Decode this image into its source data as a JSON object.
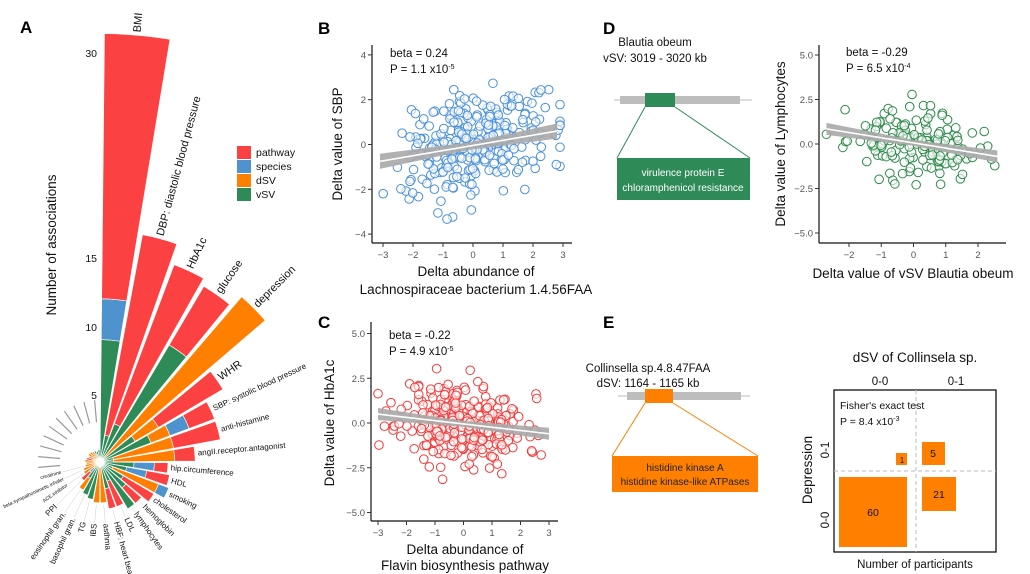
{
  "colors": {
    "pathway": "#FB4141",
    "species": "#4F93CE",
    "dSV": "#FF8000",
    "vSV": "#2E8A57",
    "scatter_blue": "#4A90D9",
    "scatter_red": "#F23B3B",
    "scatter_green": "#2E8A4A",
    "gray_band": "#A8A8A8"
  },
  "panels": {
    "A": "A",
    "B": "B",
    "C": "C",
    "D": "D",
    "E": "E"
  },
  "chart_data": [
    {
      "id": "A",
      "type": "bar",
      "subtype": "circular-stacked",
      "ylabel": "Number of associations",
      "yticks": [
        "5",
        "10",
        "15",
        "30"
      ],
      "legend": [
        "pathway",
        "species",
        "dSV",
        "vSV"
      ],
      "legend_position": "right",
      "categories": [
        {
          "label": "BMI",
          "vSV": 9,
          "species": 3,
          "pathway": 19.5
        },
        {
          "label": "DBP: diastolic blood pressure",
          "vSV": 2,
          "pathway": 15
        },
        {
          "label": "HbA1c",
          "vSV": 3,
          "pathway": 12.5
        },
        {
          "label": "glucose",
          "vSV": 10,
          "pathway": 5
        },
        {
          "label": "depression",
          "dSV": 16
        },
        {
          "label": "WHR",
          "vSV": 3,
          "dSV": 2,
          "pathway": 5.5
        },
        {
          "label": "SBP: systolic blood pressure",
          "vSV": 4,
          "dSV": 1.5,
          "species": 1.5,
          "pathway": 2
        },
        {
          "label": "anti-histamine",
          "vSV": 1,
          "pathway": 3.5,
          "dSV": 4.5
        },
        {
          "label": "angII.receptor.antagonist",
          "vSV": 1,
          "dSV": 4.5,
          "pathway": 1.5
        },
        {
          "label": "hip.circumference",
          "vSV": 2.5,
          "species": 1.5,
          "pathway": 1
        },
        {
          "label": "HDL",
          "vSV": 2,
          "species": 1.5,
          "pathway": 1.7
        },
        {
          "label": "smoking",
          "vSV": 1,
          "species": 0.8,
          "dSV": 3.6
        },
        {
          "label": "cholesterol",
          "vSV": 2,
          "pathway": 2.6
        },
        {
          "label": "hemoglobin",
          "vSV": 2.5,
          "pathway": 1.5
        },
        {
          "label": "lymphocytes",
          "vSV": 4
        },
        {
          "label": "LDL",
          "vSV": 1.5,
          "pathway": 2
        },
        {
          "label": "HBF: heart beat fre.",
          "vSV": 2,
          "pathway": 1.5
        },
        {
          "label": "asthma",
          "dSV": 3
        },
        {
          "label": "IBS",
          "dSV": 3
        },
        {
          "label": "TG",
          "vSV": 2.8
        },
        {
          "label": "basophil gran.",
          "vSV": 2.6
        },
        {
          "label": "eosinophil gran.",
          "vSV": 1.4,
          "dSV": 1
        },
        {
          "label": "PPI",
          "pathway": 0.8,
          "species": 0.4,
          "dSV": 0.6
        },
        {
          "label": "ACE.inhibitor",
          "dSV": 1.4
        },
        {
          "label": "beta.sympathomimetic.inhaler",
          "dSV": 1.3
        },
        {
          "label": "creatinine",
          "dSV": 1.1
        },
        {
          "label": "",
          "dSV": 1.0
        },
        {
          "label": "",
          "dSV": 0.9,
          "vSV": 0.2
        },
        {
          "label": "",
          "pathway": 0.5,
          "dSV": 0.5
        },
        {
          "label": "",
          "dSV": 0.9
        },
        {
          "label": "",
          "dSV": 1.0
        },
        {
          "label": "",
          "vSV": 0.6,
          "dSV": 0.4
        },
        {
          "label": "",
          "dSV": 0.9
        },
        {
          "label": "",
          "species": 0.3,
          "dSV": 0.6
        },
        {
          "label": "",
          "vSV": 0.8
        },
        {
          "label": "",
          "vSV": 0.9
        }
      ]
    },
    {
      "id": "B",
      "type": "scatter",
      "xlabel": [
        "Delta abundance of",
        "Lachnospiraceae bacterium 1.4.56FAA"
      ],
      "ylabel": "Delta value of SBP",
      "xticks": [
        "−3",
        "−2",
        "−1",
        "0",
        "1",
        "2",
        "3"
      ],
      "xtick_values": [
        -3,
        -2,
        -1,
        0,
        1,
        2,
        3
      ],
      "yticks": [
        "−4",
        "−2",
        "0",
        "2",
        "4"
      ],
      "ytick_values": [
        -4,
        -2,
        0,
        2,
        4
      ],
      "xlim": [
        -3.2,
        3.2
      ],
      "ylim": [
        -4.4,
        4.4
      ],
      "beta_label": "beta = 0.24",
      "p_label": "P = 1.1 x10",
      "p_exp": "-5",
      "slope": 0.24,
      "fit_line": [
        [
          -3.1,
          -0.75
        ],
        [
          2.8,
          0.6
        ]
      ],
      "point_spread": {
        "x_sd": 1.2,
        "y_sd": 1.1,
        "x_range": [
          -3.1,
          2.9
        ]
      }
    },
    {
      "id": "C",
      "type": "scatter",
      "xlabel": [
        "Delta abundance of",
        "Flavin biosynthesis pathway"
      ],
      "ylabel": "Delta value of HbA1c",
      "xticks": [
        "−3",
        "−2",
        "−1",
        "0",
        "1",
        "2",
        "3"
      ],
      "xtick_values": [
        -3,
        -2,
        -1,
        0,
        1,
        2,
        3
      ],
      "yticks": [
        "−5.0",
        "−2.5",
        "0.0",
        "2.5",
        "5.0"
      ],
      "ytick_values": [
        -5,
        -2.5,
        0,
        2.5,
        5
      ],
      "xlim": [
        -3.2,
        3.3
      ],
      "ylim": [
        -5.5,
        5.5
      ],
      "beta_label": "beta = -0.22",
      "p_label": "P = 4.9 x10",
      "p_exp": "-5",
      "slope": -0.22,
      "fit_line": [
        [
          -3,
          0.5
        ],
        [
          3,
          -0.6
        ]
      ],
      "point_spread": {
        "x_sd": 1.1,
        "y_sd": 1.1,
        "x_range": [
          -3,
          3
        ]
      }
    },
    {
      "id": "D",
      "type": "scatter",
      "xlabel": [
        "Delta value of vSV Blautia obeum"
      ],
      "ylabel": "Delta value of Lymphocytes",
      "xticks": [
        "−2",
        "−1",
        "0",
        "1",
        "2"
      ],
      "xtick_values": [
        -2,
        -1,
        0,
        1,
        2
      ],
      "yticks": [
        "−5.0",
        "−2.5",
        "0.0",
        "2.5",
        "5.0"
      ],
      "ytick_values": [
        -5,
        -2.5,
        0,
        2.5,
        5
      ],
      "xlim": [
        -2.9,
        2.8
      ],
      "ylim": [
        -5.5,
        5.5
      ],
      "beta_label": "beta = -0.29",
      "p_label": "P = 6.5 x10",
      "p_exp": "-4",
      "slope": -0.29,
      "fit_line": [
        [
          -2.7,
          0.85
        ],
        [
          2.6,
          -0.7
        ]
      ],
      "point_spread": {
        "x_sd": 1.0,
        "y_sd": 0.9,
        "x_range": [
          -2.7,
          2.6
        ]
      }
    },
    {
      "id": "E",
      "type": "table",
      "subtype": "mosaic",
      "title": "dSV of Collinsela sp.",
      "col_labels": [
        "0-0",
        "0-1"
      ],
      "row_title": "Depression",
      "row_labels": [
        "0-1",
        "0-0"
      ],
      "xlabel": "Number of participants",
      "test_label": "Fisher's exact test",
      "p_label": "P = 8.4 x10",
      "p_exp": "-3",
      "cells": {
        "dep_0-0_dsv_0-0": 60,
        "dep_0-0_dsv_0-1": 21,
        "dep_0-1_dsv_0-0": 1,
        "dep_0-1_dsv_0-1": 5
      }
    }
  ],
  "diagram_D": {
    "species": "Blautia obeum",
    "region": "vSV: 3019 - 3020 kb",
    "genes": [
      "virulence protein E",
      "chloramphenicol resistance"
    ]
  },
  "diagram_E": {
    "species": "Collinsella sp.4.8.47FAA",
    "region": "dSV: 1164 - 1165 kb",
    "genes": [
      "histidine kinase A",
      "histidine kinase-like ATPases"
    ]
  }
}
